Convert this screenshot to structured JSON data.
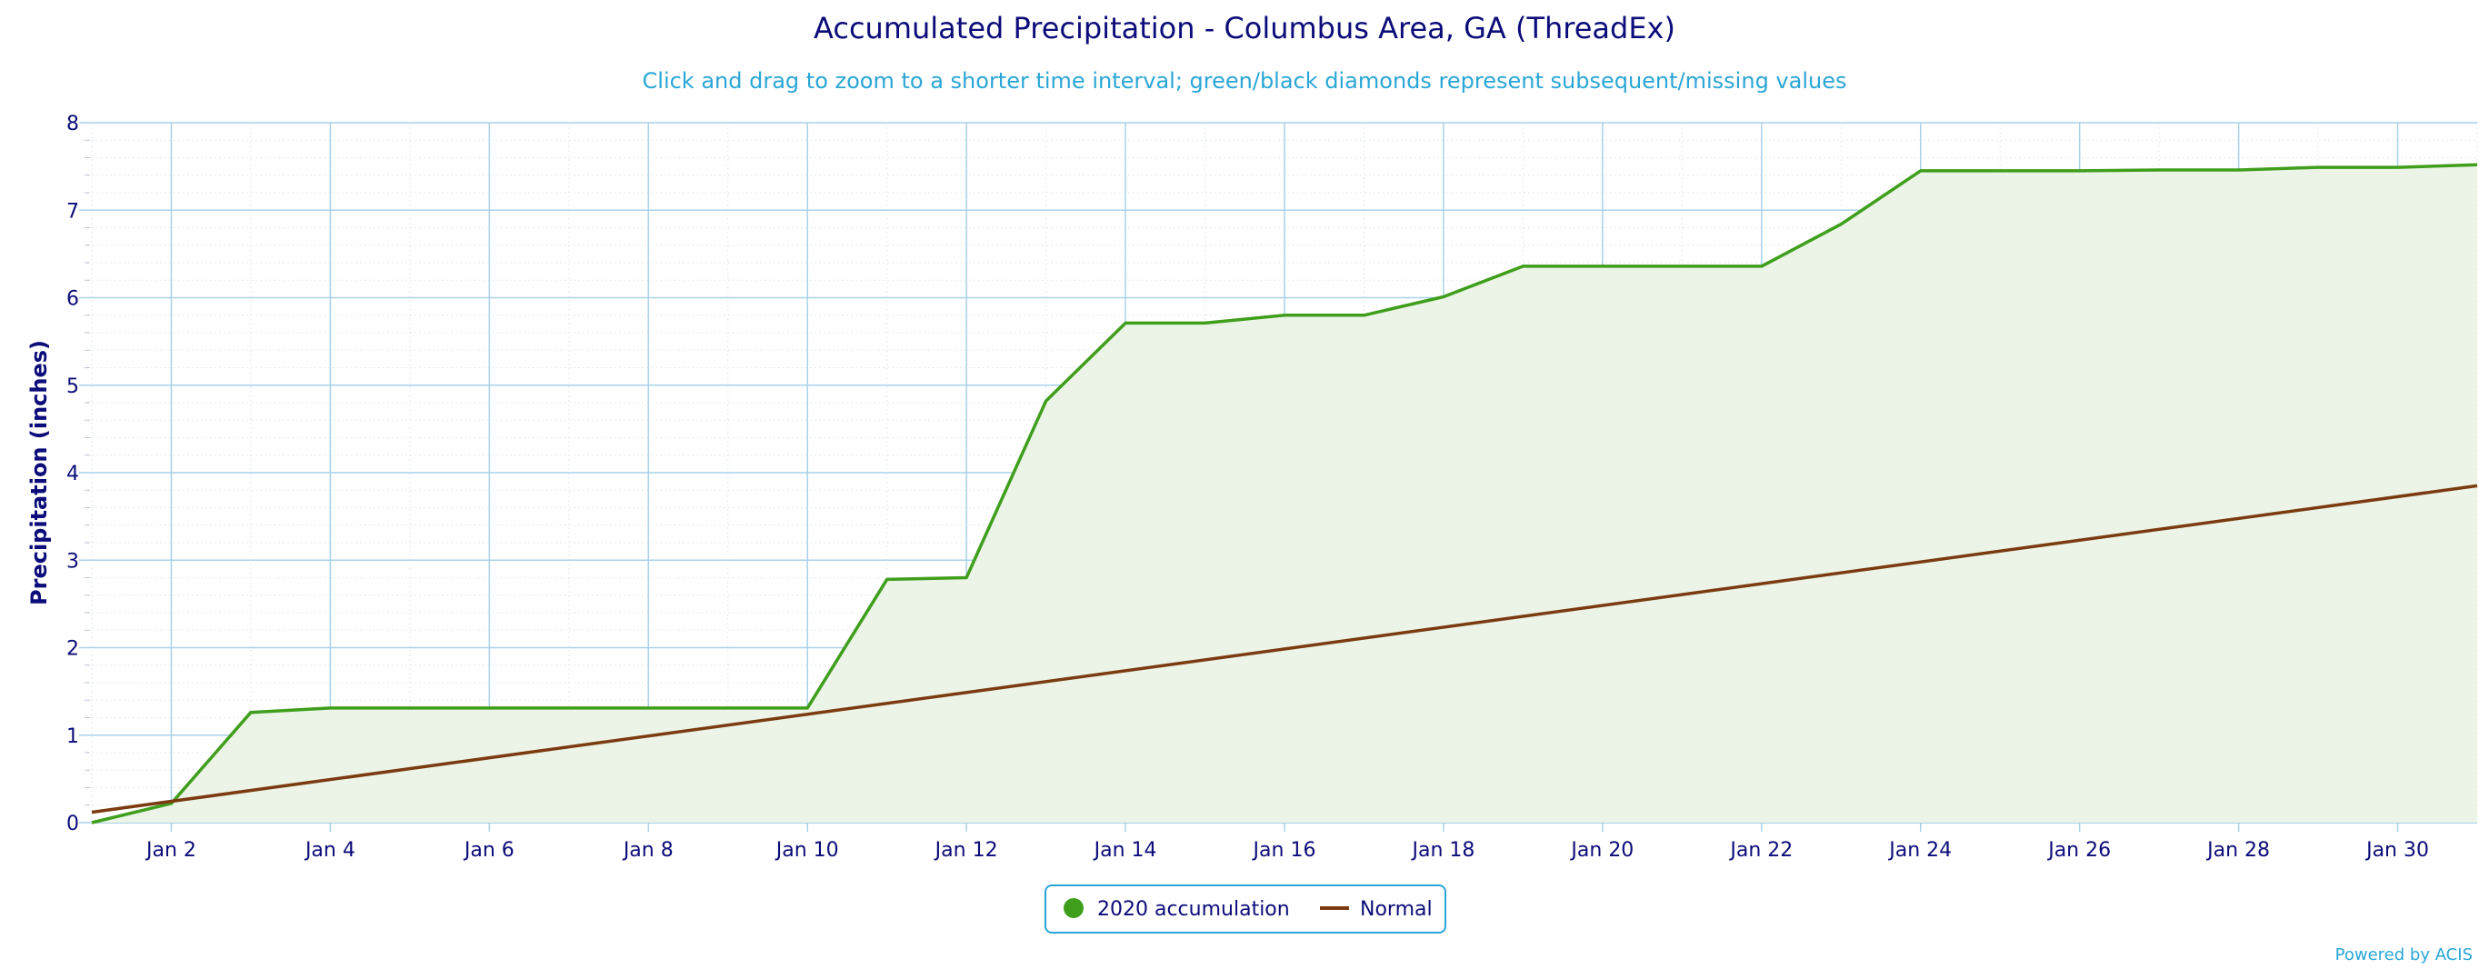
{
  "chart_data": {
    "type": "area",
    "title": "Accumulated Precipitation - Columbus Area, GA (ThreadEx)",
    "subtitle": "Click and drag to zoom to a shorter time interval; green/black diamonds represent subsequent/missing values",
    "xlabel": "",
    "ylabel": "Precipitation (inches)",
    "ylim": [
      0,
      8
    ],
    "yticks": [
      0,
      1,
      2,
      3,
      4,
      5,
      6,
      7,
      8
    ],
    "xlim": [
      "Jan 1",
      "Jan 31"
    ],
    "xtick_days": [
      2,
      4,
      6,
      8,
      10,
      12,
      14,
      16,
      18,
      20,
      22,
      24,
      26,
      28,
      30
    ],
    "xtick_labels": [
      "Jan 2",
      "Jan 4",
      "Jan 6",
      "Jan 8",
      "Jan 10",
      "Jan 12",
      "Jan 14",
      "Jan 16",
      "Jan 18",
      "Jan 20",
      "Jan 22",
      "Jan 24",
      "Jan 26",
      "Jan 28",
      "Jan 30"
    ],
    "grid": true,
    "legend_position": "bottom-center",
    "series": [
      {
        "name": "2020 accumulation",
        "color": "#3f9e1c",
        "fill": "#ebf4e6",
        "x": [
          1,
          2,
          3,
          4,
          5,
          6,
          7,
          8,
          9,
          10,
          11,
          12,
          13,
          14,
          15,
          16,
          17,
          18,
          19,
          20,
          21,
          22,
          23,
          24,
          25,
          26,
          27,
          28,
          29,
          30,
          31
        ],
        "values": [
          0.0,
          0.22,
          1.26,
          1.31,
          1.31,
          1.31,
          1.31,
          1.31,
          1.31,
          1.31,
          2.78,
          2.8,
          4.82,
          5.71,
          5.71,
          5.8,
          5.8,
          6.01,
          6.36,
          6.36,
          6.36,
          6.36,
          6.84,
          7.45,
          7.45,
          7.45,
          7.46,
          7.46,
          7.49,
          7.49,
          7.52
        ]
      },
      {
        "name": "Normal",
        "color": "#7b3a10",
        "x": [
          1,
          31
        ],
        "values": [
          0.12,
          3.85
        ]
      }
    ]
  },
  "credit": "Powered by ACIS"
}
